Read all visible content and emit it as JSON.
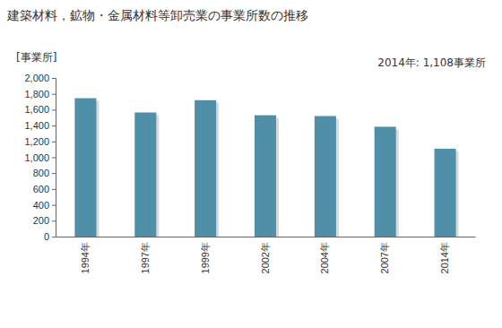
{
  "chart_data": {
    "type": "bar",
    "title": "建築材料，鉱物・金属材料等卸売業の事業所数の推移",
    "y_label": "[事業所]",
    "annotations": [
      "2014年: 1,108事業所"
    ],
    "categories": [
      "1994年",
      "1997年",
      "1999年",
      "2002年",
      "2004年",
      "2007年",
      "2014年"
    ],
    "values": [
      1745,
      1565,
      1720,
      1530,
      1520,
      1385,
      1108
    ],
    "color": "#4f8fa8",
    "ylim": [
      0,
      2000
    ],
    "yticks": [
      0,
      200,
      400,
      600,
      800,
      {
        "value": 1000,
        "label": "1,000"
      },
      {
        "value": 1200,
        "label": "1,200"
      },
      {
        "value": 1400,
        "label": "1,400"
      },
      {
        "value": 1600,
        "label": "1,600"
      },
      {
        "value": 1800,
        "label": "1,800"
      },
      {
        "value": 2000,
        "label": "2,000"
      }
    ],
    "grid": false
  }
}
